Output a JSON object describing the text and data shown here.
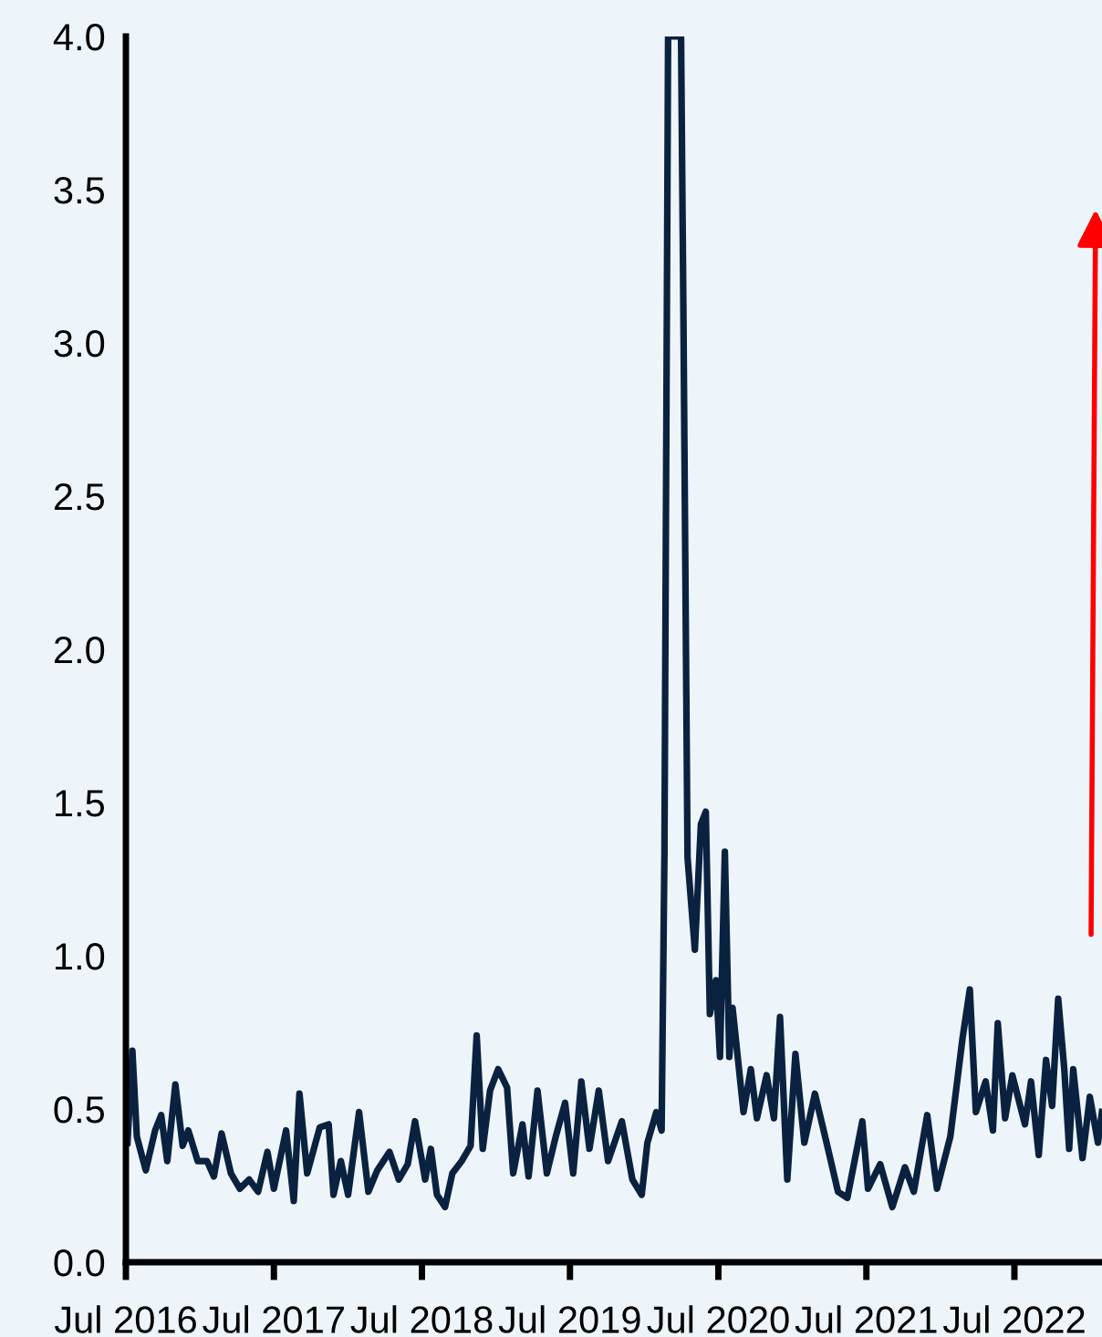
{
  "chart_data": {
    "type": "line",
    "x": [
      "2016-07-05",
      "2016-07-17",
      "2016-07-28",
      "2016-08-19",
      "2016-09-11",
      "2016-09-26",
      "2016-10-11",
      "2016-10-31",
      "2016-11-18",
      "2016-12-02",
      "2016-12-25",
      "2017-01-17",
      "2017-02-03",
      "2017-02-22",
      "2017-03-17",
      "2017-04-08",
      "2017-05-01",
      "2017-05-23",
      "2017-06-15",
      "2017-07-01",
      "2017-07-31",
      "2017-08-19",
      "2017-09-02",
      "2017-09-21",
      "2017-10-22",
      "2017-11-13",
      "2017-11-25",
      "2017-12-13",
      "2017-12-31",
      "2018-01-27",
      "2018-02-19",
      "2018-03-13",
      "2018-04-12",
      "2018-05-05",
      "2018-05-27",
      "2018-06-14",
      "2018-07-09",
      "2018-07-23",
      "2018-08-07",
      "2018-08-27",
      "2018-09-14",
      "2018-10-07",
      "2018-10-29",
      "2018-11-13",
      "2018-11-28",
      "2018-12-16",
      "2019-01-05",
      "2019-01-27",
      "2019-02-11",
      "2019-03-06",
      "2019-03-21",
      "2019-04-12",
      "2019-05-05",
      "2019-05-27",
      "2019-06-19",
      "2019-07-09",
      "2019-07-29",
      "2019-08-18",
      "2019-09-10",
      "2019-10-03",
      "2019-11-06",
      "2019-12-02",
      "2019-12-25",
      "2020-01-08",
      "2020-01-30",
      "2020-02-12",
      "2020-02-19",
      "2020-02-28",
      "2020-03-31",
      "2020-04-06",
      "2020-04-16",
      "2020-05-04",
      "2020-05-19",
      "2020-05-31",
      "2020-06-10",
      "2020-06-25",
      "2020-07-05",
      "2020-07-17",
      "2020-07-28",
      "2020-08-05",
      "2020-09-01",
      "2020-09-19",
      "2020-10-04",
      "2020-10-28",
      "2020-11-15",
      "2020-11-30",
      "2020-12-18",
      "2021-01-07",
      "2021-01-29",
      "2021-02-24",
      "2021-03-23",
      "2021-04-22",
      "2021-05-15",
      "2021-06-21",
      "2021-07-05",
      "2021-08-04",
      "2021-09-03",
      "2021-10-04",
      "2021-10-26",
      "2021-11-28",
      "2021-12-22",
      "2022-01-24",
      "2022-02-23",
      "2022-03-13",
      "2022-03-28",
      "2022-04-21",
      "2022-05-09",
      "2022-05-21",
      "2022-06-08",
      "2022-06-26",
      "2022-07-27",
      "2022-08-11",
      "2022-08-30",
      "2022-09-17",
      "2022-10-02",
      "2022-10-17",
      "2022-11-01",
      "2022-11-13",
      "2022-11-23",
      "2022-12-16",
      "2023-01-03",
      "2023-01-23",
      "2023-02-02"
    ],
    "series": [
      {
        "color": "#0a2240",
        "values": [
          0.39,
          0.69,
          0.41,
          0.3,
          0.43,
          0.48,
          0.33,
          0.58,
          0.38,
          0.43,
          0.33,
          0.33,
          0.28,
          0.42,
          0.29,
          0.24,
          0.27,
          0.23,
          0.36,
          0.24,
          0.43,
          0.2,
          0.55,
          0.29,
          0.44,
          0.45,
          0.22,
          0.33,
          0.22,
          0.49,
          0.23,
          0.3,
          0.36,
          0.27,
          0.32,
          0.46,
          0.27,
          0.37,
          0.22,
          0.18,
          0.29,
          0.33,
          0.38,
          0.74,
          0.37,
          0.56,
          0.63,
          0.57,
          0.29,
          0.45,
          0.28,
          0.56,
          0.29,
          0.41,
          0.52,
          0.29,
          0.59,
          0.37,
          0.56,
          0.33,
          0.46,
          0.27,
          0.22,
          0.39,
          0.49,
          0.43,
          1.33,
          4.0,
          4.0,
          3.06,
          1.32,
          1.02,
          1.43,
          1.47,
          0.81,
          0.92,
          0.67,
          1.34,
          0.67,
          0.83,
          0.49,
          0.63,
          0.47,
          0.61,
          0.47,
          0.8,
          0.27,
          0.68,
          0.39,
          0.55,
          0.4,
          0.23,
          0.21,
          0.46,
          0.24,
          0.32,
          0.18,
          0.31,
          0.23,
          0.48,
          0.24,
          0.41,
          0.73,
          0.89,
          0.49,
          0.59,
          0.43,
          0.78,
          0.47,
          0.61,
          0.45,
          0.59,
          0.35,
          0.66,
          0.51,
          0.86,
          0.63,
          0.37,
          0.63,
          0.34,
          0.54,
          0.39,
          0.49
        ]
      }
    ],
    "xlim": [
      "2016-07-01",
      "2023-02-02"
    ],
    "xticks": [
      {
        "value": "2016-07-01",
        "label": "Jul 2016"
      },
      {
        "value": "2017-07-01",
        "label": "Jul 2017"
      },
      {
        "value": "2018-07-01",
        "label": "Jul 2018"
      },
      {
        "value": "2019-07-01",
        "label": "Jul 2019"
      },
      {
        "value": "2020-07-01",
        "label": "Jul 2020"
      },
      {
        "value": "2021-07-01",
        "label": "Jul 2021"
      },
      {
        "value": "2022-07-01",
        "label": "Jul 2022"
      }
    ],
    "ylim": [
      0,
      4.0
    ],
    "yticks": [
      {
        "value": 0,
        "label": "0.0"
      },
      0.5,
      {
        "value": 1,
        "label": "1.0"
      },
      1.5,
      {
        "value": 2,
        "label": "2.0"
      },
      2.5,
      {
        "value": 3,
        "label": "3.0"
      },
      3.5,
      {
        "value": 4,
        "label": "4.0"
      }
    ],
    "grid": false,
    "legend": false,
    "marker": "none",
    "line_style": "solid"
  }
}
